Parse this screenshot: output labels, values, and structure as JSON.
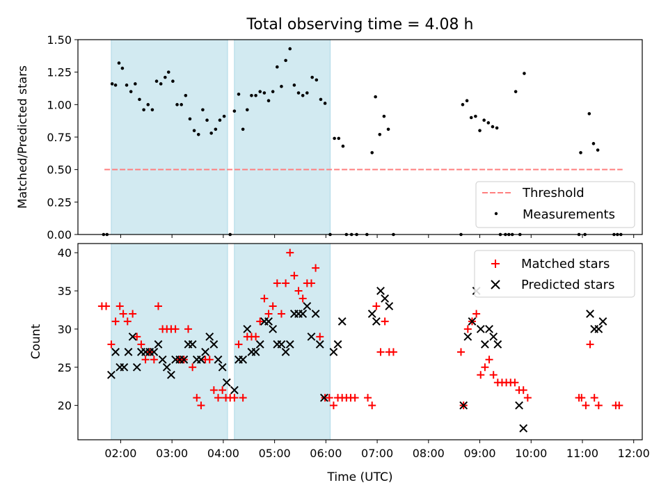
{
  "title": "Total observing time = 4.08 h",
  "colors": {
    "shade": "#add8e6",
    "threshold": "#ff7f7f",
    "measurement": "#000000",
    "matched": "#ff0000",
    "predicted": "#000000"
  },
  "chart_data": [
    {
      "type": "scatter",
      "ylabel": "Matched/Predicted stars",
      "xlim": [
        "01:10",
        "12:10"
      ],
      "ylim": [
        0,
        1.5
      ],
      "y_ticks": [
        "0.00",
        "0.25",
        "0.50",
        "0.75",
        "1.00",
        "1.25",
        "1.50"
      ],
      "legend_position": "lower right",
      "shaded_intervals": [
        [
          "01:49",
          "04:05"
        ],
        [
          "04:13",
          "06:05"
        ]
      ],
      "threshold": {
        "name": "Threshold",
        "y": 0.5,
        "x_range": [
          "01:41",
          "11:47"
        ]
      },
      "series": [
        {
          "name": "Measurements",
          "points": [
            [
              "01:40",
              0
            ],
            [
              "01:44",
              0
            ],
            [
              "01:50",
              1.16
            ],
            [
              "01:54",
              1.15
            ],
            [
              "01:58",
              1.32
            ],
            [
              "02:02",
              1.28
            ],
            [
              "02:07",
              1.15
            ],
            [
              "02:12",
              1.1
            ],
            [
              "02:17",
              1.16
            ],
            [
              "02:22",
              1.04
            ],
            [
              "02:27",
              0.96
            ],
            [
              "02:32",
              1.0
            ],
            [
              "02:37",
              0.96
            ],
            [
              "02:42",
              1.18
            ],
            [
              "02:47",
              1.16
            ],
            [
              "02:52",
              1.21
            ],
            [
              "02:56",
              1.25
            ],
            [
              "03:01",
              1.18
            ],
            [
              "03:06",
              1.0
            ],
            [
              "03:11",
              1.0
            ],
            [
              "03:16",
              1.07
            ],
            [
              "03:21",
              0.89
            ],
            [
              "03:26",
              0.8
            ],
            [
              "03:31",
              0.77
            ],
            [
              "03:36",
              0.96
            ],
            [
              "03:41",
              0.88
            ],
            [
              "03:46",
              0.78
            ],
            [
              "03:51",
              0.81
            ],
            [
              "03:56",
              0.88
            ],
            [
              "04:01",
              0.91
            ],
            [
              "04:08",
              0
            ],
            [
              "04:13",
              0.95
            ],
            [
              "04:18",
              1.08
            ],
            [
              "04:23",
              0.81
            ],
            [
              "04:28",
              0.96
            ],
            [
              "04:33",
              1.07
            ],
            [
              "04:38",
              1.07
            ],
            [
              "04:43",
              1.1
            ],
            [
              "04:48",
              1.09
            ],
            [
              "04:53",
              1.03
            ],
            [
              "04:58",
              1.1
            ],
            [
              "05:03",
              1.29
            ],
            [
              "05:08",
              1.14
            ],
            [
              "05:13",
              1.34
            ],
            [
              "05:18",
              1.43
            ],
            [
              "05:23",
              1.15
            ],
            [
              "05:28",
              1.09
            ],
            [
              "05:33",
              1.07
            ],
            [
              "05:38",
              1.09
            ],
            [
              "05:44",
              1.21
            ],
            [
              "05:49",
              1.19
            ],
            [
              "05:54",
              1.04
            ],
            [
              "05:59",
              1.01
            ],
            [
              "06:05",
              0
            ],
            [
              "06:10",
              0.74
            ],
            [
              "06:15",
              0.74
            ],
            [
              "06:20",
              0.68
            ],
            [
              "06:24",
              0
            ],
            [
              "06:30",
              0
            ],
            [
              "06:36",
              0
            ],
            [
              "06:48",
              0
            ],
            [
              "06:54",
              0.63
            ],
            [
              "06:58",
              1.06
            ],
            [
              "07:03",
              0.77
            ],
            [
              "07:08",
              0.91
            ],
            [
              "07:13",
              0.81
            ],
            [
              "07:19",
              0
            ],
            [
              "08:38",
              0
            ],
            [
              "08:40",
              1.0
            ],
            [
              "08:45",
              1.03
            ],
            [
              "08:50",
              0.9
            ],
            [
              "08:55",
              0.91
            ],
            [
              "09:00",
              0.8
            ],
            [
              "09:05",
              0.88
            ],
            [
              "09:10",
              0.86
            ],
            [
              "09:15",
              0.83
            ],
            [
              "09:20",
              0.82
            ],
            [
              "09:24",
              0
            ],
            [
              "09:30",
              0
            ],
            [
              "09:34",
              0
            ],
            [
              "09:38",
              0
            ],
            [
              "09:42",
              1.1
            ],
            [
              "09:47",
              0
            ],
            [
              "09:52",
              1.24
            ],
            [
              "10:56",
              0
            ],
            [
              "10:58",
              0.63
            ],
            [
              "11:03",
              0
            ],
            [
              "11:08",
              0.93
            ],
            [
              "11:13",
              0.7
            ],
            [
              "11:18",
              0.65
            ],
            [
              "11:37",
              0
            ],
            [
              "11:41",
              0
            ],
            [
              "11:45",
              0
            ]
          ]
        }
      ]
    },
    {
      "type": "scatter",
      "xlabel": "Time (UTC)",
      "ylabel": "Count",
      "xlim": [
        "01:10",
        "12:10"
      ],
      "ylim": [
        15.5,
        41.2
      ],
      "x_ticks": [
        "02:00",
        "03:00",
        "04:00",
        "05:00",
        "06:00",
        "07:00",
        "08:00",
        "09:00",
        "10:00",
        "11:00",
        "12:00"
      ],
      "y_ticks": [
        "20",
        "25",
        "30",
        "35",
        "40"
      ],
      "legend_position": "upper right",
      "shaded_intervals": [
        [
          "01:49",
          "04:05"
        ],
        [
          "04:13",
          "06:05"
        ]
      ],
      "series": [
        {
          "name": "Matched stars",
          "marker": "plus",
          "points": [
            [
              "01:38",
              33
            ],
            [
              "01:43",
              33
            ],
            [
              "01:49",
              28
            ],
            [
              "01:54",
              31
            ],
            [
              "01:59",
              33
            ],
            [
              "02:03",
              32
            ],
            [
              "02:08",
              31
            ],
            [
              "02:14",
              32
            ],
            [
              "02:19",
              29
            ],
            [
              "02:24",
              28
            ],
            [
              "02:29",
              26
            ],
            [
              "02:34",
              27
            ],
            [
              "02:39",
              26
            ],
            [
              "02:44",
              33
            ],
            [
              "02:49",
              30
            ],
            [
              "02:54",
              30
            ],
            [
              "02:59",
              30
            ],
            [
              "03:04",
              30
            ],
            [
              "03:09",
              26
            ],
            [
              "03:14",
              26
            ],
            [
              "03:19",
              30
            ],
            [
              "03:24",
              25
            ],
            [
              "03:29",
              21
            ],
            [
              "03:34",
              20
            ],
            [
              "03:39",
              26
            ],
            [
              "03:44",
              26
            ],
            [
              "03:49",
              22
            ],
            [
              "03:54",
              21
            ],
            [
              "03:59",
              22
            ],
            [
              "04:03",
              21
            ],
            [
              "04:08",
              21
            ],
            [
              "04:13",
              21
            ],
            [
              "04:18",
              28
            ],
            [
              "04:23",
              21
            ],
            [
              "04:28",
              29
            ],
            [
              "04:33",
              29
            ],
            [
              "04:38",
              29
            ],
            [
              "04:43",
              31
            ],
            [
              "04:48",
              34
            ],
            [
              "04:53",
              32
            ],
            [
              "04:58",
              33
            ],
            [
              "05:03",
              36
            ],
            [
              "05:08",
              32
            ],
            [
              "05:13",
              36
            ],
            [
              "05:18",
              40
            ],
            [
              "05:23",
              37
            ],
            [
              "05:28",
              35
            ],
            [
              "05:33",
              34
            ],
            [
              "05:38",
              36
            ],
            [
              "05:43",
              36
            ],
            [
              "05:48",
              38
            ],
            [
              "05:53",
              29
            ],
            [
              "05:59",
              21
            ],
            [
              "06:04",
              21
            ],
            [
              "06:09",
              20
            ],
            [
              "06:14",
              21
            ],
            [
              "06:19",
              21
            ],
            [
              "06:24",
              21
            ],
            [
              "06:29",
              21
            ],
            [
              "06:34",
              21
            ],
            [
              "06:49",
              21
            ],
            [
              "06:54",
              20
            ],
            [
              "06:59",
              33
            ],
            [
              "07:04",
              27
            ],
            [
              "07:09",
              31
            ],
            [
              "07:14",
              27
            ],
            [
              "07:19",
              27
            ],
            [
              "08:38",
              27
            ],
            [
              "08:41",
              20
            ],
            [
              "08:46",
              30
            ],
            [
              "08:51",
              31
            ],
            [
              "08:56",
              32
            ],
            [
              "09:01",
              24
            ],
            [
              "09:06",
              25
            ],
            [
              "09:11",
              26
            ],
            [
              "09:16",
              24
            ],
            [
              "09:21",
              23
            ],
            [
              "09:26",
              23
            ],
            [
              "09:31",
              23
            ],
            [
              "09:36",
              23
            ],
            [
              "09:41",
              23
            ],
            [
              "09:46",
              22
            ],
            [
              "09:51",
              22
            ],
            [
              "09:56",
              21
            ],
            [
              "10:56",
              21
            ],
            [
              "10:59",
              21
            ],
            [
              "11:04",
              20
            ],
            [
              "11:09",
              28
            ],
            [
              "11:14",
              21
            ],
            [
              "11:19",
              20
            ],
            [
              "11:39",
              20
            ],
            [
              "11:43",
              20
            ]
          ]
        },
        {
          "name": "Predicted stars",
          "marker": "x",
          "points": [
            [
              "01:49",
              24
            ],
            [
              "01:54",
              27
            ],
            [
              "01:59",
              25
            ],
            [
              "02:04",
              25
            ],
            [
              "02:09",
              27
            ],
            [
              "02:14",
              29
            ],
            [
              "02:19",
              25
            ],
            [
              "02:24",
              27
            ],
            [
              "02:29",
              27
            ],
            [
              "02:34",
              27
            ],
            [
              "02:39",
              27
            ],
            [
              "02:44",
              28
            ],
            [
              "02:49",
              26
            ],
            [
              "02:54",
              25
            ],
            [
              "02:59",
              24
            ],
            [
              "03:04",
              26
            ],
            [
              "03:09",
              26
            ],
            [
              "03:14",
              26
            ],
            [
              "03:19",
              28
            ],
            [
              "03:24",
              28
            ],
            [
              "03:29",
              26
            ],
            [
              "03:34",
              26
            ],
            [
              "03:39",
              27
            ],
            [
              "03:44",
              29
            ],
            [
              "03:49",
              28
            ],
            [
              "03:54",
              26
            ],
            [
              "03:59",
              25
            ],
            [
              "04:04",
              23
            ],
            [
              "04:13",
              22
            ],
            [
              "04:18",
              26
            ],
            [
              "04:23",
              26
            ],
            [
              "04:28",
              30
            ],
            [
              "04:33",
              27
            ],
            [
              "04:38",
              27
            ],
            [
              "04:43",
              28
            ],
            [
              "04:48",
              31
            ],
            [
              "04:53",
              31
            ],
            [
              "04:58",
              30
            ],
            [
              "05:03",
              28
            ],
            [
              "05:08",
              28
            ],
            [
              "05:13",
              27
            ],
            [
              "05:18",
              28
            ],
            [
              "05:23",
              32
            ],
            [
              "05:28",
              32
            ],
            [
              "05:33",
              32
            ],
            [
              "05:38",
              33
            ],
            [
              "05:43",
              29
            ],
            [
              "05:48",
              32
            ],
            [
              "05:53",
              28
            ],
            [
              "05:58",
              21
            ],
            [
              "06:09",
              27
            ],
            [
              "06:14",
              28
            ],
            [
              "06:19",
              31
            ],
            [
              "06:54",
              32
            ],
            [
              "06:59",
              31
            ],
            [
              "07:04",
              35
            ],
            [
              "07:09",
              34
            ],
            [
              "07:14",
              33
            ],
            [
              "08:41",
              20
            ],
            [
              "08:46",
              29
            ],
            [
              "08:51",
              31
            ],
            [
              "08:56",
              35
            ],
            [
              "09:01",
              30
            ],
            [
              "09:06",
              28
            ],
            [
              "09:11",
              30
            ],
            [
              "09:16",
              29
            ],
            [
              "09:21",
              28
            ],
            [
              "09:46",
              20
            ],
            [
              "09:51",
              17
            ],
            [
              "11:09",
              32
            ],
            [
              "11:14",
              30
            ],
            [
              "11:19",
              30
            ],
            [
              "11:24",
              31
            ]
          ]
        }
      ]
    }
  ]
}
